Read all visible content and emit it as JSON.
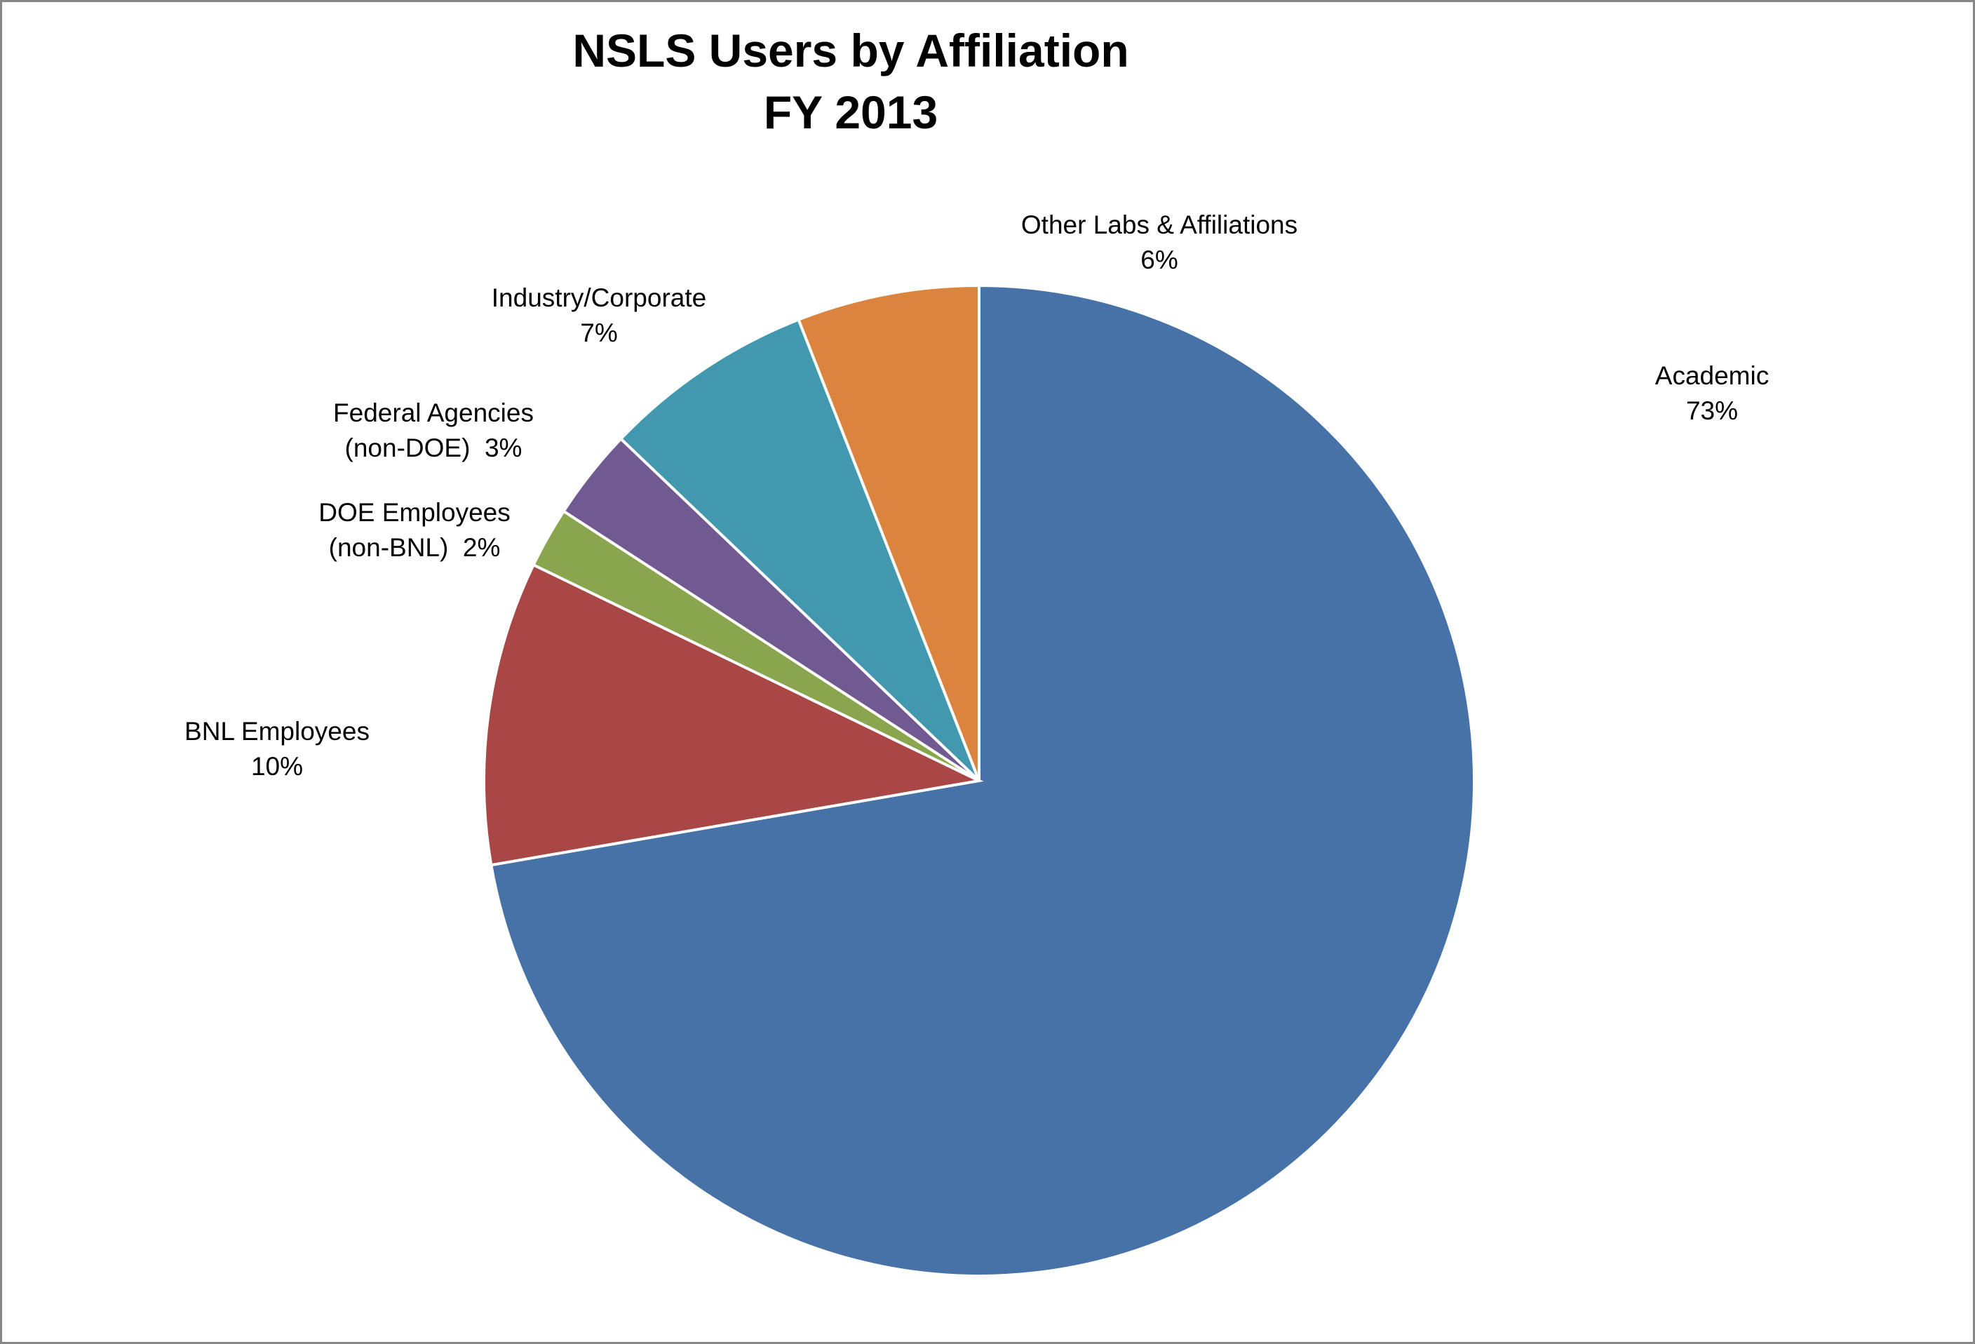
{
  "chart_data": {
    "type": "pie",
    "title": "NSLS Users by Affiliation",
    "subtitle": "FY 2013",
    "start_angle_deg": 0,
    "direction": "clockwise",
    "slices": [
      {
        "label": "Academic",
        "value": 73,
        "display": "73%",
        "color": "#4672A8"
      },
      {
        "label": "BNL Employees",
        "value": 10,
        "display": "10%",
        "color": "#A84745"
      },
      {
        "label": "DOE Employees (non-BNL)",
        "label_lines": [
          "DOE Employees",
          "(non-BNL)  2%"
        ],
        "value": 2,
        "display": "2%",
        "color": "#89A54E"
      },
      {
        "label": "Federal Agencies (non-DOE)",
        "label_lines": [
          "Federal Agencies",
          "(non-DOE)  3%"
        ],
        "value": 3,
        "display": "3%",
        "color": "#715A92"
      },
      {
        "label": "Industry/Corporate",
        "value": 7,
        "display": "7%",
        "color": "#4299AF"
      },
      {
        "label": "Other Labs & Affiliations",
        "value": 6,
        "display": "6%",
        "color": "#DB843D"
      }
    ]
  }
}
